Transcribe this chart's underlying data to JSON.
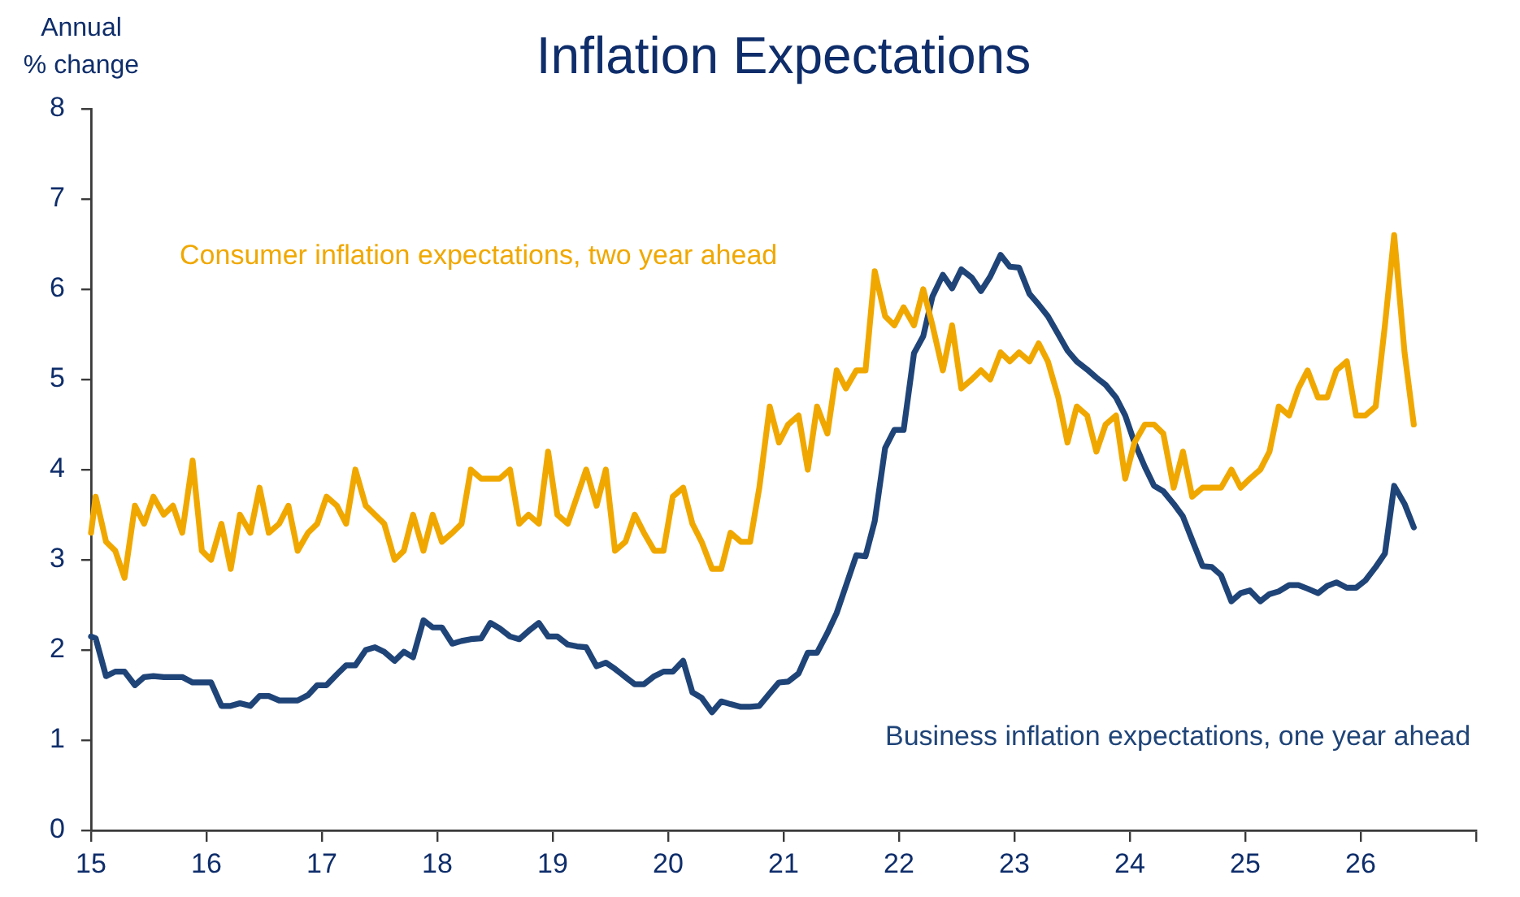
{
  "chart_data": {
    "type": "line",
    "title": "Inflation Expectations",
    "ylabel": "Annual\n% change",
    "x": [
      15.0,
      15.04,
      15.13,
      15.21,
      15.29,
      15.38,
      15.46,
      15.54,
      15.63,
      15.71,
      15.79,
      15.88,
      15.96,
      16.04,
      16.13,
      16.21,
      16.29,
      16.38,
      16.46,
      16.54,
      16.63,
      16.71,
      16.79,
      16.88,
      16.96,
      17.04,
      17.13,
      17.21,
      17.29,
      17.38,
      17.46,
      17.54,
      17.63,
      17.71,
      17.79,
      17.88,
      17.96,
      18.04,
      18.13,
      18.21,
      18.29,
      18.38,
      18.46,
      18.54,
      18.63,
      18.71,
      18.79,
      18.88,
      18.96,
      19.04,
      19.13,
      19.21,
      19.29,
      19.38,
      19.46,
      19.54,
      19.63,
      19.71,
      19.79,
      19.88,
      19.96,
      20.04,
      20.13,
      20.21,
      20.29,
      20.38,
      20.46,
      20.54,
      20.63,
      20.71,
      20.79,
      20.88,
      20.96,
      21.04,
      21.13,
      21.21,
      21.29,
      21.38,
      21.46,
      21.54,
      21.63,
      21.71,
      21.79,
      21.88,
      21.96,
      22.04,
      22.13,
      22.21,
      22.29,
      22.38,
      22.46,
      22.54,
      22.63,
      22.71,
      22.79,
      22.88,
      22.96,
      23.04,
      23.13,
      23.21,
      23.29,
      23.38,
      23.46,
      23.54,
      23.63,
      23.71,
      23.79,
      23.88,
      23.96,
      24.04,
      24.13,
      24.21,
      24.29,
      24.38,
      24.46,
      24.54,
      24.63,
      24.71,
      24.79,
      24.88,
      24.96,
      25.04,
      25.13,
      25.21,
      25.29,
      25.38,
      25.46,
      25.54,
      25.63,
      25.71,
      25.79,
      25.88,
      25.96,
      26.04,
      26.13,
      26.21,
      26.29,
      26.38,
      26.46
    ],
    "series": [
      {
        "name": "Consumer inflation expectations, two year ahead",
        "color": "#f0a800",
        "values": [
          3.3,
          3.7,
          3.2,
          3.1,
          2.8,
          3.6,
          3.4,
          3.7,
          3.5,
          3.6,
          3.3,
          4.1,
          3.1,
          3.0,
          3.4,
          2.9,
          3.5,
          3.3,
          3.8,
          3.3,
          3.4,
          3.6,
          3.1,
          3.3,
          3.4,
          3.7,
          3.6,
          3.4,
          4.0,
          3.6,
          3.5,
          3.4,
          3.0,
          3.1,
          3.5,
          3.1,
          3.5,
          3.2,
          3.3,
          3.4,
          4.0,
          3.9,
          3.9,
          3.9,
          4.0,
          3.4,
          3.5,
          3.4,
          4.2,
          3.5,
          3.4,
          3.7,
          4.0,
          3.6,
          4.0,
          3.1,
          3.2,
          3.5,
          3.3,
          3.1,
          3.1,
          3.7,
          3.8,
          3.4,
          3.2,
          2.9,
          2.9,
          3.3,
          3.2,
          3.2,
          3.8,
          4.7,
          4.3,
          4.5,
          4.6,
          4.0,
          4.7,
          4.4,
          5.1,
          4.9,
          5.1,
          5.1,
          6.2,
          5.7,
          5.6,
          5.8,
          5.6,
          6.0,
          5.6,
          5.1,
          5.6,
          4.9,
          5.0,
          5.1,
          5.0,
          5.3,
          5.2,
          5.3,
          5.2,
          5.4,
          5.2,
          4.8,
          4.3,
          4.7,
          4.6,
          4.2,
          4.5,
          4.6,
          3.9,
          4.3,
          4.5,
          4.5,
          4.4,
          3.8,
          4.2,
          3.7,
          3.8,
          3.8,
          3.8,
          4.0,
          3.8,
          3.9,
          4.0,
          4.2,
          4.7,
          4.6,
          4.9,
          5.1,
          4.8,
          4.8,
          5.1,
          5.2,
          4.6,
          4.6,
          4.7,
          5.6,
          6.6,
          5.3,
          4.5
        ]
      },
      {
        "name": "Business inflation expectations, one year ahead",
        "color": "#1f4478",
        "values": [
          2.15,
          2.13,
          1.71,
          1.76,
          1.76,
          1.61,
          1.7,
          1.71,
          1.7,
          1.7,
          1.7,
          1.64,
          1.64,
          1.64,
          1.38,
          1.38,
          1.41,
          1.38,
          1.49,
          1.49,
          1.44,
          1.44,
          1.44,
          1.5,
          1.61,
          1.61,
          1.73,
          1.83,
          1.83,
          2.0,
          2.03,
          1.98,
          1.88,
          1.98,
          1.92,
          2.33,
          2.25,
          2.25,
          2.07,
          2.1,
          2.12,
          2.13,
          2.3,
          2.24,
          2.15,
          2.12,
          2.21,
          2.3,
          2.15,
          2.15,
          2.06,
          2.04,
          2.03,
          1.82,
          1.86,
          1.79,
          1.7,
          1.62,
          1.62,
          1.71,
          1.76,
          1.76,
          1.88,
          1.53,
          1.47,
          1.31,
          1.43,
          1.4,
          1.37,
          1.37,
          1.38,
          1.52,
          1.64,
          1.65,
          1.74,
          1.97,
          1.97,
          2.19,
          2.41,
          2.71,
          3.05,
          3.04,
          3.43,
          4.24,
          4.44,
          4.44,
          5.29,
          5.48,
          5.92,
          6.16,
          6.01,
          6.22,
          6.13,
          5.98,
          6.14,
          6.38,
          6.25,
          6.24,
          5.95,
          5.83,
          5.7,
          5.5,
          5.32,
          5.2,
          5.11,
          5.02,
          4.94,
          4.8,
          4.6,
          4.3,
          4.03,
          3.82,
          3.76,
          3.62,
          3.48,
          3.22,
          2.93,
          2.92,
          2.83,
          2.54,
          2.63,
          2.66,
          2.54,
          2.62,
          2.65,
          2.72,
          2.72,
          2.68,
          2.63,
          2.71,
          2.75,
          2.69,
          2.69,
          2.77,
          2.92,
          3.07,
          3.82,
          3.62,
          3.36
        ]
      }
    ],
    "xlim": [
      15,
      27
    ],
    "xticks": [
      15,
      16,
      17,
      18,
      19,
      20,
      21,
      22,
      23,
      24,
      25,
      26,
      {
        "value": 27,
        "label": null
      }
    ],
    "ylim": [
      0,
      8
    ],
    "yticks": [
      0,
      1,
      2,
      3,
      4,
      5,
      6,
      7,
      8
    ]
  }
}
